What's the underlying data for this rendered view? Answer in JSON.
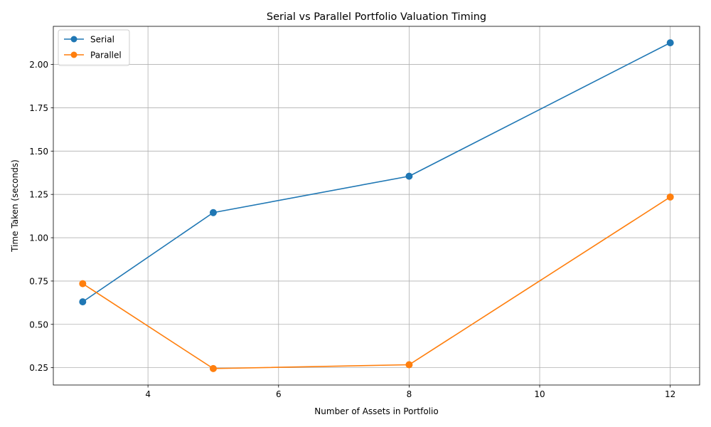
{
  "chart_data": {
    "type": "line",
    "title": "Serial vs Parallel Portfolio Valuation Timing",
    "xlabel": "Number of Assets in Portfolio",
    "ylabel": "Time Taken (seconds)",
    "x": [
      3,
      5,
      8,
      12
    ],
    "xlim": [
      2.55,
      12.45
    ],
    "ylim": [
      0.15,
      2.22
    ],
    "xticks": [
      4,
      6,
      8,
      10,
      12
    ],
    "xtick_labels": [
      "4",
      "6",
      "8",
      "10",
      "12"
    ],
    "yticks": [
      0.25,
      0.5,
      0.75,
      1.0,
      1.25,
      1.5,
      1.75,
      2.0
    ],
    "ytick_labels": [
      "0.25",
      "0.50",
      "0.75",
      "1.00",
      "1.25",
      "1.50",
      "1.75",
      "2.00"
    ],
    "grid": true,
    "legend_position": "top-left",
    "series": [
      {
        "name": "Serial",
        "color": "#1f77b4",
        "marker": "circle",
        "values": [
          0.63,
          1.145,
          1.355,
          2.125
        ]
      },
      {
        "name": "Parallel",
        "color": "#ff7f0e",
        "marker": "circle",
        "values": [
          0.735,
          0.245,
          0.267,
          1.235
        ]
      }
    ]
  }
}
